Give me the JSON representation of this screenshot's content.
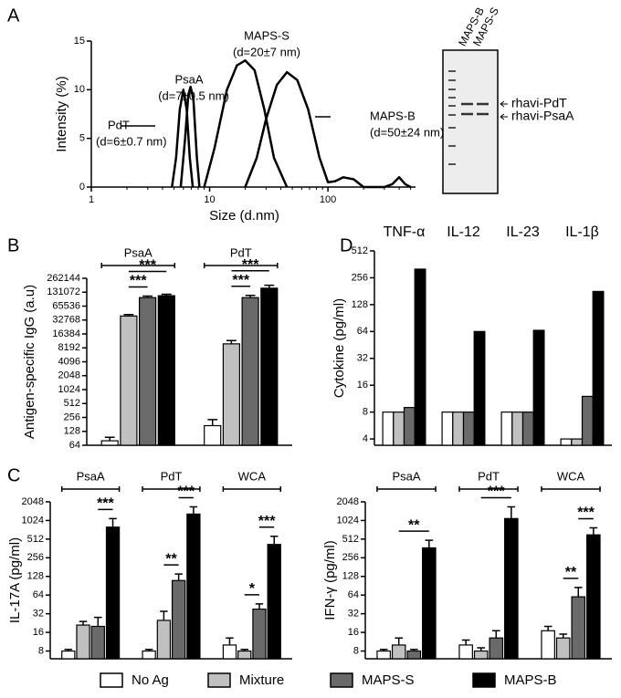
{
  "chart_data": [
    {
      "type": "line",
      "panel": "A",
      "xlabel": "Size (d.nm)",
      "ylabel": "Intensity (%)",
      "log_x": true,
      "xlim": [
        1,
        550
      ],
      "xticks": [
        1,
        10,
        100
      ],
      "minor_xticks": [
        2,
        3,
        4,
        5,
        6,
        7,
        8,
        9,
        20,
        30,
        40,
        50,
        60,
        70,
        80,
        90,
        200,
        300,
        400,
        500
      ],
      "ylim": [
        0,
        15
      ],
      "yticks": [
        0,
        5,
        10,
        15
      ],
      "series": [
        {
          "name": "PdT",
          "size_label": "(d=6±0.7 nm)",
          "color": "#000000",
          "x": [
            4.8,
            5.2,
            5.6,
            6.0,
            6.4,
            6.8,
            7.2
          ],
          "values": [
            0,
            3,
            8,
            10,
            8,
            3,
            0
          ]
        },
        {
          "name": "PsaA",
          "size_label": "(d=7±0.5 nm)",
          "color": "#000000",
          "x": [
            5.7,
            6.2,
            6.6,
            6.9,
            7.3,
            7.8,
            8.2
          ],
          "values": [
            0,
            5,
            9.5,
            10.3,
            9,
            3,
            0
          ]
        },
        {
          "name": "MAPS-S",
          "size_label": "(d=20±7 nm)",
          "color": "#000000",
          "x": [
            9,
            11,
            14,
            17,
            20,
            24,
            29,
            35,
            45
          ],
          "values": [
            0,
            4,
            10,
            12.5,
            13,
            12,
            8,
            3,
            0
          ]
        },
        {
          "name": "MAPS-B",
          "size_label": "(d=50±24 nm)",
          "color": "#000000",
          "x": [
            20,
            25,
            30,
            37,
            45,
            55,
            68,
            85,
            100,
            115,
            135,
            165,
            200,
            300,
            350,
            400,
            450,
            500
          ],
          "values": [
            0,
            3,
            7,
            10.5,
            11.8,
            11,
            8,
            3,
            0.5,
            0.6,
            1,
            0.8,
            0,
            0,
            0.3,
            1,
            0.3,
            0
          ]
        }
      ],
      "gel": {
        "lanes": [
          "MAPS-B",
          "MAPS-S"
        ],
        "bands": [
          "rhavi-PdT",
          "rhavi-PsaA"
        ]
      }
    },
    {
      "type": "bar",
      "panel": "B",
      "ylabel": "Antigen-specific IgG (a.u)",
      "log_y": true,
      "category_brackets": true,
      "categories": [
        "PsaA",
        "PdT"
      ],
      "ylim": [
        64,
        262144
      ],
      "yticks": [
        64,
        128,
        256,
        512,
        1024,
        2048,
        4096,
        8192,
        16384,
        32768,
        65536,
        131072,
        262144
      ],
      "series": [
        {
          "name": "No Ag",
          "color": "#ffffff",
          "values": [
            80,
            170
          ],
          "errors": [
            15,
            60
          ]
        },
        {
          "name": "Mixture",
          "color": "#c0c0c0",
          "values": [
            40000,
            10000
          ],
          "errors": [
            3000,
            1800
          ]
        },
        {
          "name": "MAPS-S",
          "color": "#6a6a6a",
          "values": [
            100000,
            100000
          ],
          "errors": [
            8000,
            12000
          ]
        },
        {
          "name": "MAPS-B",
          "color": "#000000",
          "values": [
            110000,
            160000
          ],
          "errors": [
            8000,
            25000
          ]
        }
      ],
      "significance": [
        {
          "category": "PsaA",
          "pair": [
            "Mixture",
            "MAPS-S"
          ],
          "label": "***"
        },
        {
          "category": "PsaA",
          "pair": [
            "Mixture",
            "MAPS-B"
          ],
          "label": "***"
        },
        {
          "category": "PdT",
          "pair": [
            "Mixture",
            "MAPS-S"
          ],
          "label": "***"
        },
        {
          "category": "PdT",
          "pair": [
            "Mixture",
            "MAPS-B"
          ],
          "label": "***"
        }
      ]
    },
    {
      "type": "bar",
      "panel": "D",
      "ylabel": "Cytokine (pg/ml)",
      "log_y": true,
      "category_brackets": false,
      "categories": [
        "TNF-α",
        "IL-12",
        "IL-23",
        "IL-1β"
      ],
      "ylim": [
        3.4,
        512
      ],
      "yticks": [
        4,
        8,
        16,
        32,
        64,
        128,
        256,
        512
      ],
      "series": [
        {
          "name": "No Ag",
          "color": "#ffffff",
          "values": [
            8,
            8,
            8,
            4
          ]
        },
        {
          "name": "Mixture",
          "color": "#c0c0c0",
          "values": [
            8,
            8,
            8,
            4
          ]
        },
        {
          "name": "MAPS-S",
          "color": "#6a6a6a",
          "values": [
            9,
            8,
            8,
            12
          ]
        },
        {
          "name": "MAPS-B",
          "color": "#000000",
          "values": [
            320,
            64,
            66,
            180
          ]
        }
      ]
    },
    {
      "type": "bar",
      "panel": "C",
      "ylabel": "IL-17A (pg/ml)",
      "log_y": true,
      "category_brackets": true,
      "legend": true,
      "categories": [
        "PsaA",
        "PdT",
        "WCA"
      ],
      "ylim": [
        6,
        2048
      ],
      "yticks": [
        8,
        16,
        32,
        64,
        128,
        256,
        512,
        1024,
        2048
      ],
      "series": [
        {
          "name": "No Ag",
          "color": "#ffffff",
          "values": [
            8,
            8,
            10
          ],
          "errors": [
            0.5,
            0.5,
            3
          ]
        },
        {
          "name": "Mixture",
          "color": "#c0c0c0",
          "values": [
            21,
            25,
            8
          ],
          "errors": [
            3,
            10,
            0.5
          ]
        },
        {
          "name": "MAPS-S",
          "color": "#6a6a6a",
          "values": [
            20,
            110,
            38
          ],
          "errors": [
            8,
            30,
            8
          ]
        },
        {
          "name": "MAPS-B",
          "color": "#000000",
          "values": [
            800,
            1300,
            420
          ],
          "errors": [
            300,
            400,
            150
          ]
        }
      ],
      "significance": [
        {
          "category": "PsaA",
          "pair": [
            "MAPS-S",
            "MAPS-B"
          ],
          "label": "***"
        },
        {
          "category": "PdT",
          "pair": [
            "Mixture",
            "MAPS-S"
          ],
          "label": "**"
        },
        {
          "category": "PdT",
          "pair": [
            "MAPS-S",
            "MAPS-B"
          ],
          "label": "***"
        },
        {
          "category": "WCA",
          "pair": [
            "Mixture",
            "MAPS-S"
          ],
          "label": "*"
        },
        {
          "category": "WCA",
          "pair": [
            "MAPS-S",
            "MAPS-B"
          ],
          "label": "***"
        }
      ]
    },
    {
      "type": "bar",
      "ylabel": "IFN-γ (pg/ml)",
      "log_y": true,
      "category_brackets": true,
      "categories": [
        "PsaA",
        "PdT",
        "WCA"
      ],
      "ylim": [
        6,
        2048
      ],
      "yticks": [
        8,
        16,
        32,
        64,
        128,
        256,
        512,
        1024,
        2048
      ],
      "series": [
        {
          "name": "No Ag",
          "color": "#ffffff",
          "values": [
            8,
            10,
            17
          ],
          "errors": [
            0.5,
            2,
            3
          ]
        },
        {
          "name": "Mixture",
          "color": "#c0c0c0",
          "values": [
            10,
            8,
            13
          ],
          "errors": [
            3,
            1,
            2
          ]
        },
        {
          "name": "MAPS-S",
          "color": "#6a6a6a",
          "values": [
            8,
            13,
            60
          ],
          "errors": [
            0.5,
            4,
            25
          ]
        },
        {
          "name": "MAPS-B",
          "color": "#000000",
          "values": [
            370,
            1100,
            600
          ],
          "errors": [
            120,
            600,
            180
          ]
        }
      ],
      "significance": [
        {
          "category": "PsaA",
          "pair": [
            "Mixture",
            "MAPS-B"
          ],
          "label": "**"
        },
        {
          "category": "PdT",
          "pair": [
            "Mixture",
            "MAPS-B"
          ],
          "label": "***"
        },
        {
          "category": "WCA",
          "pair": [
            "Mixture",
            "MAPS-S"
          ],
          "label": "**"
        },
        {
          "category": "WCA",
          "pair": [
            "MAPS-S",
            "MAPS-B"
          ],
          "label": "***"
        }
      ]
    }
  ]
}
